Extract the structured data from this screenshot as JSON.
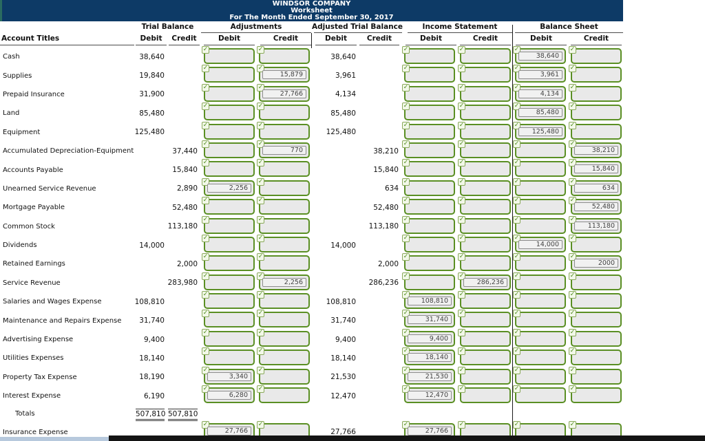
{
  "banner": {
    "company": "WINDSOR COMPANY",
    "worksheet": "Worksheet",
    "period": "For The Month Ended September 30, 2017"
  },
  "columns": {
    "account_titles": "Account Titles",
    "debit_label": "Debit",
    "credit_label": "Credit",
    "groups": [
      {
        "label": "Trial Balance"
      },
      {
        "label": "Adjustments"
      },
      {
        "label": "Adjusted Trial Balance"
      },
      {
        "label": "Income Statement"
      },
      {
        "label": "Balance Sheet"
      }
    ]
  },
  "colors": {
    "banner_navy": "#0d3a66",
    "box_border_green": "#5a8f23",
    "box_fill_gray": "#e9e9e9",
    "check_green": "#4e8b1d",
    "divider_black": "#1a1a1a",
    "taskbar_black": "#141414",
    "window_edge_teal": "#2a6b60",
    "bottom_strip_blue": "#b7c9dd"
  },
  "icons": {
    "checkmark": "✓"
  },
  "rows": [
    {
      "title": "Cash",
      "tb_debit": "38,640",
      "tb_credit": "",
      "adj_debit": "",
      "adj_credit": "",
      "atb_debit": "38,640",
      "atb_credit": "",
      "is_debit": "",
      "is_credit": "",
      "bs_debit": "38,640",
      "bs_credit": ""
    },
    {
      "title": "Supplies",
      "tb_debit": "19,840",
      "tb_credit": "",
      "adj_debit": "",
      "adj_credit": "15,879",
      "atb_debit": "3,961",
      "atb_credit": "",
      "is_debit": "",
      "is_credit": "",
      "bs_debit": "3,961",
      "bs_credit": ""
    },
    {
      "title": "Prepaid Insurance",
      "tb_debit": "31,900",
      "tb_credit": "",
      "adj_debit": "",
      "adj_credit": "27,766",
      "atb_debit": "4,134",
      "atb_credit": "",
      "is_debit": "",
      "is_credit": "",
      "bs_debit": "4,134",
      "bs_credit": ""
    },
    {
      "title": "Land",
      "tb_debit": "85,480",
      "tb_credit": "",
      "adj_debit": "",
      "adj_credit": "",
      "atb_debit": "85,480",
      "atb_credit": "",
      "is_debit": "",
      "is_credit": "",
      "bs_debit": "85,480",
      "bs_credit": ""
    },
    {
      "title": "Equipment",
      "tb_debit": "125,480",
      "tb_credit": "",
      "adj_debit": "",
      "adj_credit": "",
      "atb_debit": "125,480",
      "atb_credit": "",
      "is_debit": "",
      "is_credit": "",
      "bs_debit": "125,480",
      "bs_credit": ""
    },
    {
      "title": "Accumulated Depreciation-Equipment",
      "tb_debit": "",
      "tb_credit": "37,440",
      "adj_debit": "",
      "adj_credit": "770",
      "atb_debit": "",
      "atb_credit": "38,210",
      "is_debit": "",
      "is_credit": "",
      "bs_debit": "",
      "bs_credit": "38,210"
    },
    {
      "title": "Accounts Payable",
      "tb_debit": "",
      "tb_credit": "15,840",
      "adj_debit": "",
      "adj_credit": "",
      "atb_debit": "",
      "atb_credit": "15,840",
      "is_debit": "",
      "is_credit": "",
      "bs_debit": "",
      "bs_credit": "15,840"
    },
    {
      "title": "Unearned Service Revenue",
      "tb_debit": "",
      "tb_credit": "2,890",
      "adj_debit": "2,256",
      "adj_credit": "",
      "atb_debit": "",
      "atb_credit": "634",
      "is_debit": "",
      "is_credit": "",
      "bs_debit": "",
      "bs_credit": "634"
    },
    {
      "title": "Mortgage Payable",
      "tb_debit": "",
      "tb_credit": "52,480",
      "adj_debit": "",
      "adj_credit": "",
      "atb_debit": "",
      "atb_credit": "52,480",
      "is_debit": "",
      "is_credit": "",
      "bs_debit": "",
      "bs_credit": "52,480"
    },
    {
      "title": "Common Stock",
      "tb_debit": "",
      "tb_credit": "113,180",
      "adj_debit": "",
      "adj_credit": "",
      "atb_debit": "",
      "atb_credit": "113,180",
      "is_debit": "",
      "is_credit": "",
      "bs_debit": "",
      "bs_credit": "113,180"
    },
    {
      "title": "Dividends",
      "tb_debit": "14,000",
      "tb_credit": "",
      "adj_debit": "",
      "adj_credit": "",
      "atb_debit": "14,000",
      "atb_credit": "",
      "is_debit": "",
      "is_credit": "",
      "bs_debit": "14,000",
      "bs_credit": ""
    },
    {
      "title": "Retained Earnings",
      "tb_debit": "",
      "tb_credit": "2,000",
      "adj_debit": "",
      "adj_credit": "",
      "atb_debit": "",
      "atb_credit": "2,000",
      "is_debit": "",
      "is_credit": "",
      "bs_debit": "",
      "bs_credit": "2000"
    },
    {
      "title": "Service Revenue",
      "tb_debit": "",
      "tb_credit": "283,980",
      "adj_debit": "",
      "adj_credit": "2,256",
      "atb_debit": "",
      "atb_credit": "286,236",
      "is_debit": "",
      "is_credit": "286,236",
      "bs_debit": "",
      "bs_credit": ""
    },
    {
      "title": "Salaries and Wages Expense",
      "tb_debit": "108,810",
      "tb_credit": "",
      "adj_debit": "",
      "adj_credit": "",
      "atb_debit": "108,810",
      "atb_credit": "",
      "is_debit": "108,810",
      "is_credit": "",
      "bs_debit": "",
      "bs_credit": ""
    },
    {
      "title": "Maintenance and Repairs Expense",
      "tb_debit": "31,740",
      "tb_credit": "",
      "adj_debit": "",
      "adj_credit": "",
      "atb_debit": "31,740",
      "atb_credit": "",
      "is_debit": "31,740",
      "is_credit": "",
      "bs_debit": "",
      "bs_credit": ""
    },
    {
      "title": "Advertising Expense",
      "tb_debit": "9,400",
      "tb_credit": "",
      "adj_debit": "",
      "adj_credit": "",
      "atb_debit": "9,400",
      "atb_credit": "",
      "is_debit": "9,400",
      "is_credit": "",
      "bs_debit": "",
      "bs_credit": ""
    },
    {
      "title": "Utilities Expenses",
      "tb_debit": "18,140",
      "tb_credit": "",
      "adj_debit": "",
      "adj_credit": "",
      "atb_debit": "18,140",
      "atb_credit": "",
      "is_debit": "18,140",
      "is_credit": "",
      "bs_debit": "",
      "bs_credit": ""
    },
    {
      "title": "Property Tax Expense",
      "tb_debit": "18,190",
      "tb_credit": "",
      "adj_debit": "3,340",
      "adj_credit": "",
      "atb_debit": "21,530",
      "atb_credit": "",
      "is_debit": "21,530",
      "is_credit": "",
      "bs_debit": "",
      "bs_credit": ""
    },
    {
      "title": "Interest Expense",
      "tb_debit": "6,190",
      "tb_credit": "",
      "adj_debit": "6,280",
      "adj_credit": "",
      "atb_debit": "12,470",
      "atb_credit": "",
      "is_debit": "12,470",
      "is_credit": "",
      "bs_debit": "",
      "bs_credit": ""
    },
    {
      "title": "Totals",
      "type": "totals",
      "tb_debit": "507,810",
      "tb_credit": "507,810"
    },
    {
      "title": "Insurance Expense",
      "tb_debit": "",
      "tb_credit": "",
      "adj_debit": "27,766",
      "adj_credit": "",
      "atb_debit": "27,766",
      "atb_credit": "",
      "is_debit": "27,766",
      "is_credit": "",
      "bs_debit": "",
      "bs_credit": ""
    }
  ]
}
